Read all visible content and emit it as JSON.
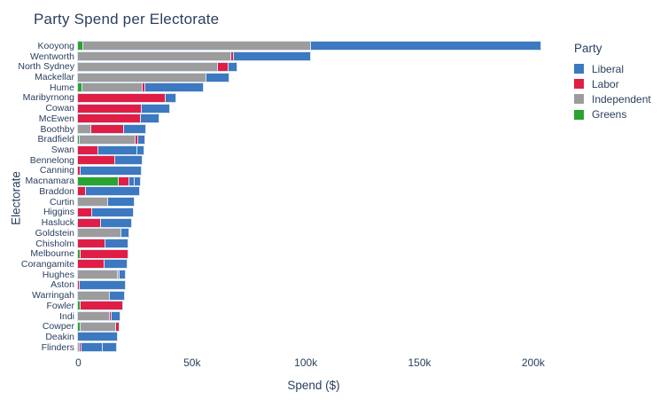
{
  "title": "Party Spend per Electorate",
  "x_axis": {
    "label": "Spend ($)"
  },
  "y_axis": {
    "label": "Electorate"
  },
  "legend": {
    "title": "Party",
    "entries": [
      {
        "label": "Liberal",
        "color": "#3c79c0"
      },
      {
        "label": "Labor",
        "color": "#e01e45"
      },
      {
        "label": "Independent",
        "color": "#9c9c9c"
      },
      {
        "label": "Greens",
        "color": "#2ba330"
      }
    ]
  },
  "chart_data": {
    "type": "bar",
    "orientation": "horizontal",
    "stacked": true,
    "title": "Party Spend per Electorate",
    "xlabel": "Spend ($)",
    "ylabel": "Electorate",
    "xlim": [
      0,
      207000
    ],
    "grid": false,
    "legend_position": "right",
    "party_colors": {
      "Liberal": "#3c79c0",
      "Labor": "#e01e45",
      "Independent": "#9c9c9c",
      "Greens": "#2ba330"
    },
    "xticks": [
      {
        "value": 0,
        "label": "0"
      },
      {
        "value": 50000,
        "label": "50k"
      },
      {
        "value": 100000,
        "label": "100k"
      },
      {
        "value": 150000,
        "label": "150k"
      },
      {
        "value": 200000,
        "label": "200k"
      }
    ],
    "categories": [
      "Kooyong",
      "Wentworth",
      "North Sydney",
      "Mackellar",
      "Hume",
      "Maribyrnong",
      "Cowan",
      "McEwen",
      "Boothby",
      "Bradfield",
      "Swan",
      "Bennelong",
      "Canning",
      "Macnamara",
      "Braddon",
      "Curtin",
      "Higgins",
      "Hasluck",
      "Goldstein",
      "Chisholm",
      "Melbourne",
      "Corangamite",
      "Hughes",
      "Aston",
      "Warringah",
      "Fowler",
      "Indi",
      "Cowper",
      "Deakin",
      "Flinders"
    ],
    "rows": [
      {
        "electorate": "Kooyong",
        "segments": [
          {
            "party": "Greens",
            "value": 2500
          },
          {
            "party": "Independent",
            "value": 100000
          },
          {
            "party": "Liberal",
            "value": 101000
          }
        ]
      },
      {
        "electorate": "Wentworth",
        "segments": [
          {
            "party": "Independent",
            "value": 67200
          },
          {
            "party": "Labor",
            "value": 1300
          },
          {
            "party": "Liberal",
            "value": 33600
          }
        ]
      },
      {
        "electorate": "North Sydney",
        "segments": [
          {
            "party": "Independent",
            "value": 61400
          },
          {
            "party": "Labor",
            "value": 4800
          },
          {
            "party": "Liberal",
            "value": 3700
          }
        ]
      },
      {
        "electorate": "Mackellar",
        "segments": [
          {
            "party": "Independent",
            "value": 56400
          },
          {
            "party": "Liberal",
            "value": 9800
          }
        ]
      },
      {
        "electorate": "Hume",
        "segments": [
          {
            "party": "Greens",
            "value": 1900
          },
          {
            "party": "Independent",
            "value": 26700
          },
          {
            "party": "Labor",
            "value": 1100
          },
          {
            "party": "Liberal",
            "value": 25300
          }
        ]
      },
      {
        "electorate": "Maribyrnong",
        "segments": [
          {
            "party": "Labor",
            "value": 38400
          },
          {
            "party": "Liberal",
            "value": 4400
          }
        ]
      },
      {
        "electorate": "Cowan",
        "segments": [
          {
            "party": "Labor",
            "value": 27900
          },
          {
            "party": "Liberal",
            "value": 12200
          }
        ]
      },
      {
        "electorate": "McEwen",
        "segments": [
          {
            "party": "Labor",
            "value": 27500
          },
          {
            "party": "Liberal",
            "value": 7800
          }
        ]
      },
      {
        "electorate": "Boothby",
        "segments": [
          {
            "party": "Independent",
            "value": 5800
          },
          {
            "party": "Labor",
            "value": 14300
          },
          {
            "party": "Liberal",
            "value": 9700
          }
        ]
      },
      {
        "electorate": "Bradfield",
        "segments": [
          {
            "party": "Greens",
            "value": 800
          },
          {
            "party": "Independent",
            "value": 24600
          },
          {
            "party": "Labor",
            "value": 1200
          },
          {
            "party": "Liberal",
            "value": 2600
          }
        ]
      },
      {
        "electorate": "Swan",
        "segments": [
          {
            "party": "Labor",
            "value": 8900
          },
          {
            "party": "Liberal",
            "value": 17300
          },
          {
            "party": "Liberal",
            "value": 2800
          }
        ]
      },
      {
        "electorate": "Bennelong",
        "segments": [
          {
            "party": "Labor",
            "value": 16500
          },
          {
            "party": "Liberal",
            "value": 11700
          }
        ]
      },
      {
        "electorate": "Canning",
        "segments": [
          {
            "party": "Labor",
            "value": 1000
          },
          {
            "party": "Liberal",
            "value": 26600
          }
        ]
      },
      {
        "electorate": "Macnamara",
        "segments": [
          {
            "party": "Greens",
            "value": 18100
          },
          {
            "party": "Labor",
            "value": 4600
          },
          {
            "party": "Liberal",
            "value": 2300
          },
          {
            "party": "Liberal",
            "value": 2200
          }
        ]
      },
      {
        "electorate": "Braddon",
        "segments": [
          {
            "party": "Labor",
            "value": 3500
          },
          {
            "party": "Liberal",
            "value": 23500
          }
        ]
      },
      {
        "electorate": "Curtin",
        "segments": [
          {
            "party": "Independent",
            "value": 13200
          },
          {
            "party": "Liberal",
            "value": 11400
          }
        ]
      },
      {
        "electorate": "Higgins",
        "segments": [
          {
            "party": "Labor",
            "value": 6400
          },
          {
            "party": "Liberal",
            "value": 17600
          }
        ]
      },
      {
        "electorate": "Hasluck",
        "segments": [
          {
            "party": "Labor",
            "value": 10000
          },
          {
            "party": "Liberal",
            "value": 13300
          }
        ]
      },
      {
        "electorate": "Goldstein",
        "segments": [
          {
            "party": "Independent",
            "value": 19100
          },
          {
            "party": "Liberal",
            "value": 3200
          }
        ]
      },
      {
        "electorate": "Chisholm",
        "segments": [
          {
            "party": "Labor",
            "value": 11900
          },
          {
            "party": "Liberal",
            "value": 10100
          }
        ]
      },
      {
        "electorate": "Melbourne",
        "segments": [
          {
            "party": "Greens",
            "value": 1300
          },
          {
            "party": "Labor",
            "value": 20500
          }
        ]
      },
      {
        "electorate": "Corangamite",
        "segments": [
          {
            "party": "Labor",
            "value": 11600
          },
          {
            "party": "Liberal",
            "value": 10000
          }
        ]
      },
      {
        "electorate": "Hughes",
        "segments": [
          {
            "party": "Independent",
            "value": 17500
          },
          {
            "party": "Independent",
            "value": 1000
          },
          {
            "party": "Liberal",
            "value": 2200
          }
        ]
      },
      {
        "electorate": "Aston",
        "segments": [
          {
            "party": "Labor",
            "value": 700
          },
          {
            "party": "Liberal",
            "value": 19800
          }
        ]
      },
      {
        "electorate": "Warringah",
        "segments": [
          {
            "party": "Independent",
            "value": 14200
          },
          {
            "party": "Liberal",
            "value": 5900
          }
        ]
      },
      {
        "electorate": "Fowler",
        "segments": [
          {
            "party": "Greens",
            "value": 1300
          },
          {
            "party": "Labor",
            "value": 18100
          }
        ]
      },
      {
        "electorate": "Indi",
        "segments": [
          {
            "party": "Independent",
            "value": 14100
          },
          {
            "party": "Labor",
            "value": 900
          },
          {
            "party": "Liberal",
            "value": 3200
          }
        ]
      },
      {
        "electorate": "Cowper",
        "segments": [
          {
            "party": "Greens",
            "value": 1300
          },
          {
            "party": "Independent",
            "value": 15600
          },
          {
            "party": "Labor",
            "value": 1000
          }
        ]
      },
      {
        "electorate": "Deakin",
        "segments": [
          {
            "party": "Liberal",
            "value": 17200
          }
        ]
      },
      {
        "electorate": "Flinders",
        "segments": [
          {
            "party": "Independent",
            "value": 600
          },
          {
            "party": "Labor",
            "value": 800
          },
          {
            "party": "Liberal",
            "value": 9500
          },
          {
            "party": "Liberal",
            "value": 6000
          }
        ]
      }
    ]
  }
}
